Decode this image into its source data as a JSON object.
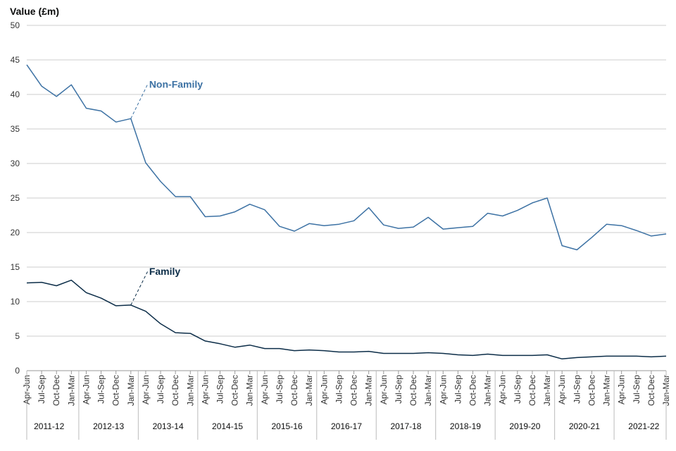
{
  "chart_data": {
    "type": "line",
    "title": "Value (£m)",
    "ylabel": "Value (£m)",
    "ylim": [
      0,
      50
    ],
    "yticks": [
      0,
      5,
      10,
      15,
      20,
      25,
      30,
      35,
      40,
      45,
      50
    ],
    "quarters": [
      "Apr-Jun",
      "Jul-Sep",
      "Oct-Dec",
      "Jan-Mar"
    ],
    "years": [
      "2011-12",
      "2012-13",
      "2013-14",
      "2014-15",
      "2015-16",
      "2016-17",
      "2017-18",
      "2018-19",
      "2019-20",
      "2020-21",
      "2021-22"
    ],
    "colors": {
      "non_family": "#3d72a4",
      "family": "#0c2d48"
    },
    "series": [
      {
        "key": "non_family",
        "name": "Non-Family",
        "label_value": 41.5,
        "label_from_index": 7,
        "values": [
          44.3,
          41.2,
          39.7,
          41.4,
          38.0,
          37.6,
          36.0,
          36.5,
          30.1,
          27.4,
          25.2,
          25.2,
          22.3,
          22.4,
          23.0,
          24.1,
          23.3,
          20.9,
          20.2,
          21.3,
          21.0,
          21.2,
          21.7,
          23.6,
          21.1,
          20.6,
          20.8,
          22.2,
          20.5,
          20.7,
          20.9,
          22.8,
          22.4,
          23.2,
          24.3,
          25.0,
          18.1,
          17.5,
          19.3,
          21.2,
          21.0,
          20.3,
          19.5,
          19.8
        ]
      },
      {
        "key": "family",
        "name": "Family",
        "label_value": 14.4,
        "label_from_index": 7,
        "values": [
          12.7,
          12.8,
          12.3,
          13.1,
          11.3,
          10.5,
          9.4,
          9.5,
          8.6,
          6.8,
          5.5,
          5.4,
          4.3,
          3.9,
          3.4,
          3.7,
          3.2,
          3.2,
          2.9,
          3.0,
          2.9,
          2.7,
          2.7,
          2.8,
          2.5,
          2.5,
          2.5,
          2.6,
          2.5,
          2.3,
          2.2,
          2.4,
          2.2,
          2.2,
          2.2,
          2.3,
          1.7,
          1.9,
          2.0,
          2.1,
          2.1,
          2.1,
          2.0,
          2.1
        ]
      }
    ]
  }
}
